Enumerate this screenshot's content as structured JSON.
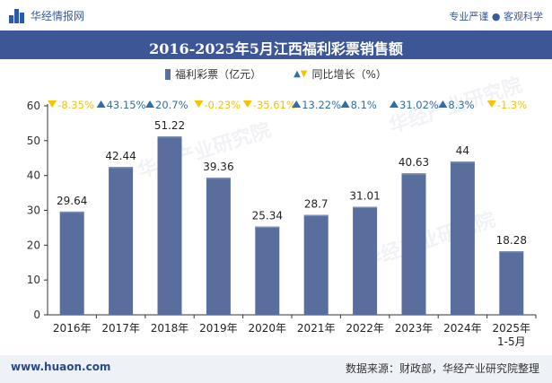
{
  "header": {
    "brand": "华经情报网",
    "tagline": "专业严谨 ● 客观科学"
  },
  "legend": {
    "series1": "福利彩票（亿元）",
    "series2": "同比增长（%）"
  },
  "footer": {
    "website": "www.huaon.com",
    "source": "数据来源：财政部，华经产业研究院整理"
  },
  "watermark": "华经产业研究院",
  "colors": {
    "bar": "#5a6e9e",
    "bar_highlight": "#7d8db5",
    "up": "#2e6fa7",
    "down": "#f5c400",
    "title_bg": "#3d5695"
  },
  "chart_data": {
    "type": "bar",
    "title": "2016-2025年5月江西福利彩票销售额",
    "categories": [
      "2016年",
      "2017年",
      "2018年",
      "2019年",
      "2020年",
      "2021年",
      "2022年",
      "2023年",
      "2024年",
      "2025年\n1-5月"
    ],
    "series": [
      {
        "name": "福利彩票（亿元）",
        "values": [
          29.64,
          42.44,
          51.22,
          39.36,
          25.34,
          28.7,
          31.01,
          40.63,
          44,
          18.28
        ],
        "value_labels": [
          "29.64",
          "42.44",
          "51.22",
          "39.36",
          "25.34",
          "28.7",
          "31.01",
          "40.63",
          "44",
          "18.28"
        ]
      },
      {
        "name": "同比增长（%）",
        "values": [
          -8.35,
          43.15,
          20.7,
          -0.23,
          -35.61,
          13.22,
          8.1,
          31.02,
          8.3,
          -1.3
        ],
        "value_labels": [
          "-8.35%",
          "43.15%",
          "20.7%",
          "-0.23%",
          "-35.61%",
          "13.22%",
          "8.1%",
          "31.02%",
          "8.3%",
          "-1.3%"
        ]
      }
    ],
    "ylim": [
      0,
      60
    ],
    "yticks": [
      0,
      10,
      20,
      30,
      40,
      50,
      60
    ],
    "ytick_labels": [
      "0",
      "10",
      "20",
      "30",
      "40",
      "50",
      "60"
    ],
    "xlabel": "",
    "ylabel": "",
    "grid": false,
    "legend_position": "top-center"
  }
}
